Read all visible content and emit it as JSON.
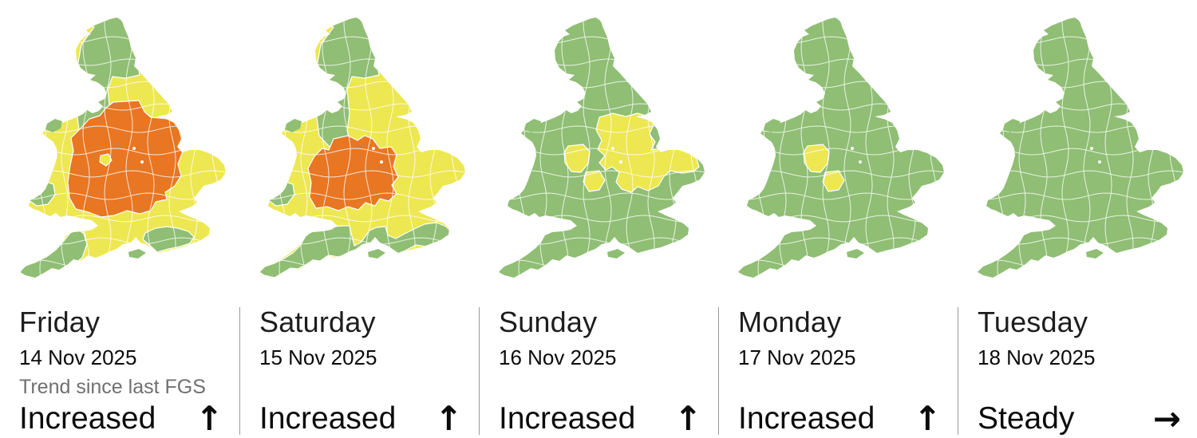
{
  "colors": {
    "very_low": "#8FBE74",
    "low": "#EDE751",
    "medium": "#E87623",
    "boundary": "#FFFFFF",
    "divider": "#9A9A9A",
    "day_text": "#1D1D1D",
    "date_text": "#0B0B0B",
    "note_text": "#707070"
  },
  "trend_note": "Trend since last FGS",
  "days": [
    {
      "name": "Friday",
      "date": "14 Nov 2025",
      "trend": "Increased",
      "arrow": "↑",
      "arrow_icon": "up-arrow",
      "map": {
        "base": "low",
        "regions": [
          {
            "area": "north-england",
            "level": "very_low"
          },
          {
            "area": "midlands-friday",
            "level": "medium"
          },
          {
            "area": "shropshire-enclave",
            "level": "low"
          },
          {
            "area": "sussex",
            "level": "very_low"
          },
          {
            "area": "cornwall",
            "level": "very_low"
          },
          {
            "area": "west-wales",
            "level": "very_low"
          }
        ],
        "islands": {
          "anglesey": "very_low",
          "isle_of_wight": "very_low"
        }
      }
    },
    {
      "name": "Saturday",
      "date": "15 Nov 2025",
      "trend": "Increased",
      "arrow": "↑",
      "arrow_icon": "up-arrow",
      "map": {
        "base": "low",
        "regions": [
          {
            "area": "north-england",
            "level": "very_low"
          },
          {
            "area": "midlands-saturday",
            "level": "medium"
          },
          {
            "area": "south-coast",
            "level": "very_low"
          },
          {
            "area": "west-wales",
            "level": "very_low"
          }
        ],
        "islands": {
          "anglesey": "very_low",
          "isle_of_wight": "very_low"
        }
      }
    },
    {
      "name": "Sunday",
      "date": "16 Nov 2025",
      "trend": "Increased",
      "arrow": "↑",
      "arrow_icon": "up-arrow",
      "map": {
        "base": "very_low",
        "regions": [
          {
            "area": "west-midlands-a",
            "level": "low"
          },
          {
            "area": "west-midlands-b",
            "level": "low"
          },
          {
            "area": "east-midlands",
            "level": "low"
          }
        ],
        "islands": {
          "anglesey": "very_low",
          "isle_of_wight": "very_low"
        }
      }
    },
    {
      "name": "Monday",
      "date": "17 Nov 2025",
      "trend": "Increased",
      "arrow": "↑",
      "arrow_icon": "up-arrow",
      "map": {
        "base": "very_low",
        "regions": [
          {
            "area": "west-midlands-a",
            "level": "low"
          },
          {
            "area": "west-midlands-b",
            "level": "low"
          }
        ],
        "islands": {
          "anglesey": "very_low",
          "isle_of_wight": "very_low"
        }
      }
    },
    {
      "name": "Tuesday",
      "date": "18 Nov 2025",
      "trend": "Steady",
      "arrow": "→",
      "arrow_icon": "right-arrow",
      "map": {
        "base": "very_low",
        "regions": [],
        "islands": {
          "anglesey": "very_low",
          "isle_of_wight": "very_low"
        }
      }
    }
  ]
}
